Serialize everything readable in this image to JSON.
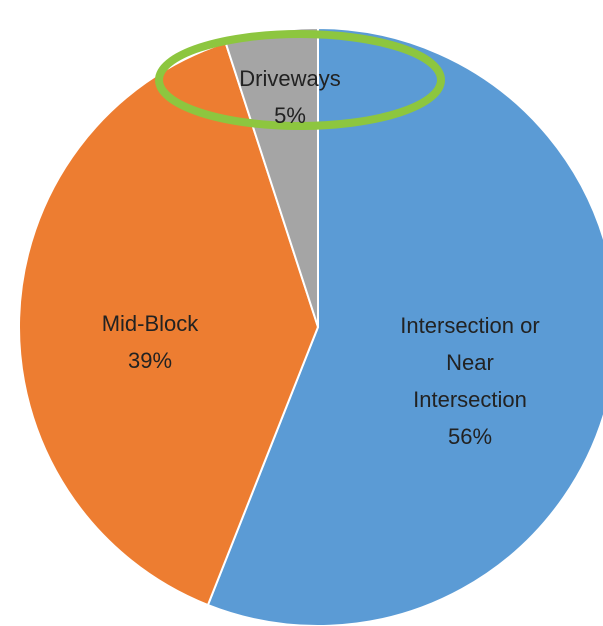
{
  "chart_data": {
    "type": "pie",
    "categories": [
      "Intersection or Near Intersection",
      "Mid-Block",
      "Driveways"
    ],
    "values": [
      56,
      39,
      5
    ],
    "value_labels": [
      "56%",
      "39%",
      "5%"
    ],
    "colors": [
      "#5b9bd5",
      "#ed7d31",
      "#a5a5a5"
    ]
  }
}
